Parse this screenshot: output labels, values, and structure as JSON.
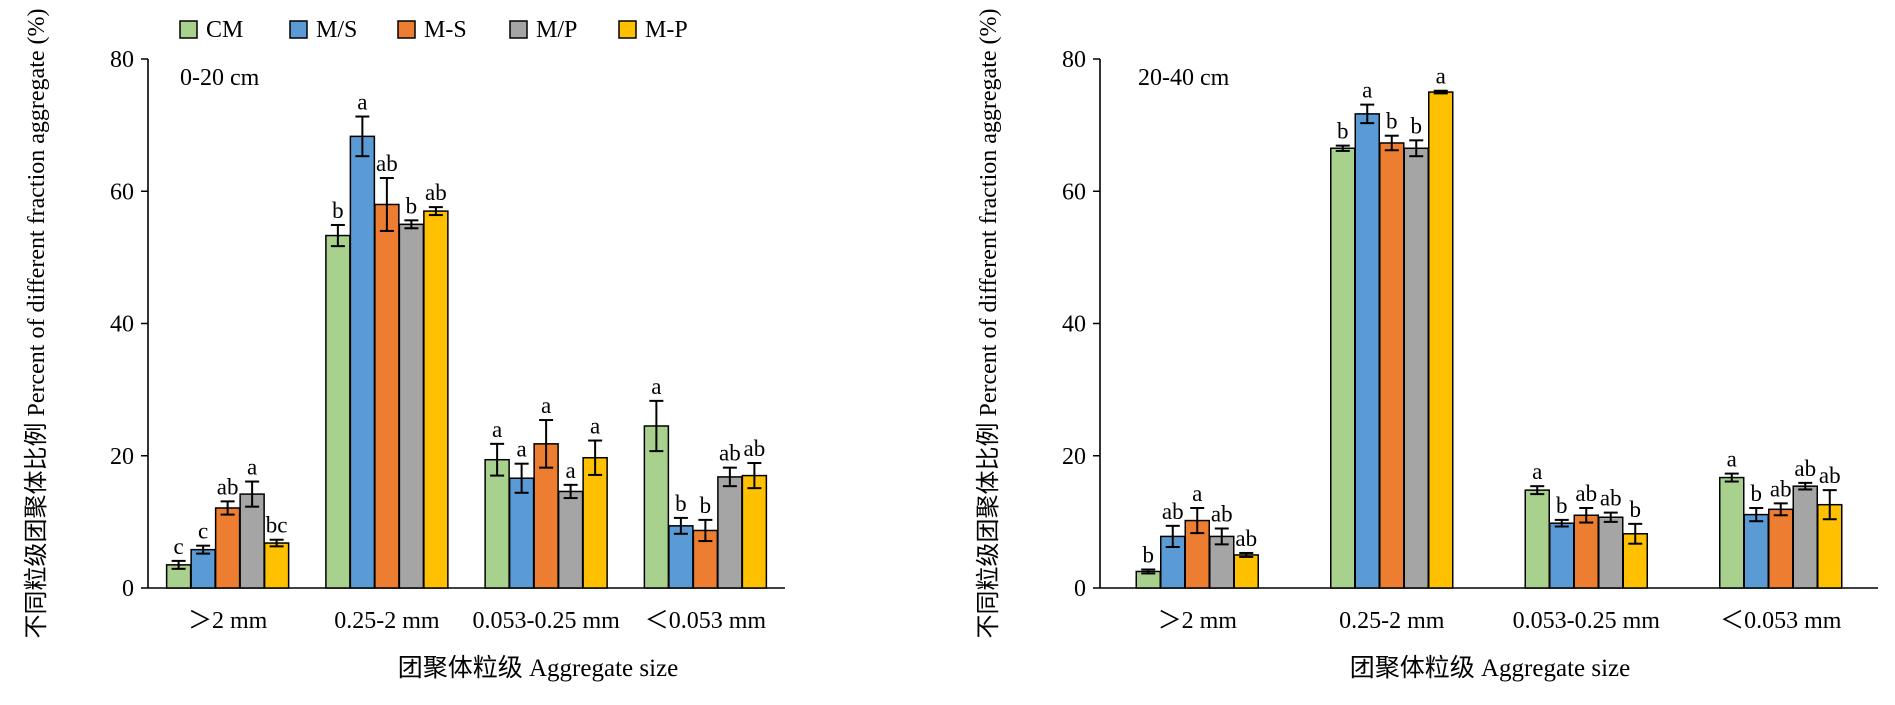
{
  "legend": [
    {
      "name": "CM",
      "color": "#a9d18e"
    },
    {
      "name": "M/S",
      "color": "#5b9bd5"
    },
    {
      "name": "M-S",
      "color": "#ed7d31"
    },
    {
      "name": "M/P",
      "color": "#a5a5a5"
    },
    {
      "name": "M-P",
      "color": "#ffc000"
    }
  ],
  "chart_data": [
    {
      "type": "bar",
      "panel_label": "0-20 cm",
      "ylabel": "不同粒级团聚体比例 Percent of different fraction aggregate (%)",
      "xlabel": "团聚体粒级 Aggregate size",
      "categories": [
        ">2 mm",
        "0.25-2 mm",
        "0.053-0.25 mm",
        "<0.053 mm"
      ],
      "ylim": [
        0,
        80
      ],
      "yticks": [
        0,
        20,
        40,
        60,
        80
      ],
      "series": [
        {
          "name": "CM",
          "values": [
            3.5,
            53.3,
            19.4,
            24.5
          ],
          "errors": [
            0.6,
            1.6,
            2.4,
            3.8
          ],
          "letters": [
            "c",
            "b",
            "a",
            "a"
          ]
        },
        {
          "name": "M/S",
          "values": [
            5.8,
            68.3,
            16.6,
            9.4
          ],
          "errors": [
            0.6,
            3.0,
            2.2,
            1.2
          ],
          "letters": [
            "c",
            "a",
            "a",
            "b"
          ]
        },
        {
          "name": "M-S",
          "values": [
            12.1,
            58.0,
            21.8,
            8.7
          ],
          "errors": [
            1.0,
            4.0,
            3.6,
            1.6
          ],
          "letters": [
            "ab",
            "ab",
            "a",
            "b"
          ]
        },
        {
          "name": "M/P",
          "values": [
            14.2,
            55.0,
            14.6,
            16.8
          ],
          "errors": [
            1.9,
            0.6,
            1.0,
            1.4
          ],
          "letters": [
            "a",
            "b",
            "a",
            "ab"
          ]
        },
        {
          "name": "M-P",
          "values": [
            6.8,
            57.0,
            19.7,
            17.0
          ],
          "errors": [
            0.5,
            0.6,
            2.6,
            1.9
          ],
          "letters": [
            "bc",
            "ab",
            "a",
            "ab"
          ]
        }
      ]
    },
    {
      "type": "bar",
      "panel_label": "20-40 cm",
      "ylabel": "不同粒级团聚体比例 Percent of different fraction aggregate (%)",
      "xlabel": "团聚体粒级 Aggregate size",
      "categories": [
        ">2 mm",
        "0.25-2 mm",
        "0.053-0.25 mm",
        "<0.053 mm"
      ],
      "ylim": [
        0,
        80
      ],
      "yticks": [
        0,
        20,
        40,
        60,
        80
      ],
      "series": [
        {
          "name": "CM",
          "values": [
            2.5,
            66.5,
            14.8,
            16.7
          ],
          "errors": [
            0.3,
            0.4,
            0.6,
            0.6
          ],
          "letters": [
            "b",
            "b",
            "a",
            "a"
          ]
        },
        {
          "name": "M/S",
          "values": [
            7.8,
            71.7,
            9.8,
            11.1
          ],
          "errors": [
            1.6,
            1.4,
            0.5,
            1.0
          ],
          "letters": [
            "ab",
            "a",
            "b",
            "b"
          ]
        },
        {
          "name": "M-S",
          "values": [
            10.2,
            67.3,
            11.0,
            11.9
          ],
          "errors": [
            1.9,
            1.1,
            1.1,
            0.9
          ],
          "letters": [
            "a",
            "b",
            "ab",
            "ab"
          ]
        },
        {
          "name": "M/P",
          "values": [
            7.8,
            66.5,
            10.7,
            15.4
          ],
          "errors": [
            1.2,
            1.2,
            0.7,
            0.5
          ],
          "letters": [
            "ab",
            "b",
            "ab",
            "ab"
          ]
        },
        {
          "name": "M-P",
          "values": [
            5.0,
            75.0,
            8.2,
            12.6
          ],
          "errors": [
            0.3,
            0.2,
            1.5,
            2.2
          ],
          "letters": [
            "ab",
            "a",
            "b",
            "ab"
          ]
        }
      ]
    }
  ]
}
